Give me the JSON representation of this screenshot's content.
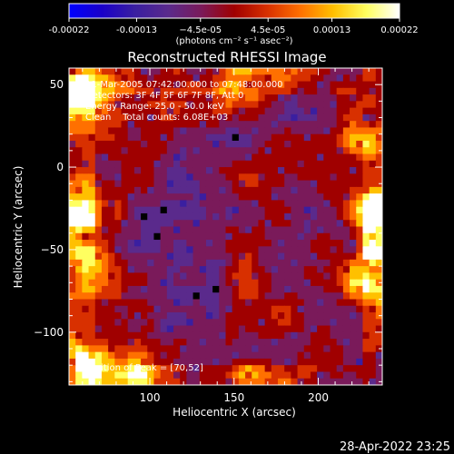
{
  "chart_data": {
    "type": "heatmap",
    "title": "Reconstructed RHESSI Image",
    "xlabel": "Heliocentric X (arcsec)",
    "ylabel": "Heliocentric Y (arcsec)",
    "xlim": [
      52,
      238
    ],
    "ylim": [
      -132,
      60
    ],
    "xticks": [
      100,
      150,
      200
    ],
    "yticks": [
      50,
      0,
      -50,
      -100
    ],
    "colorbar": {
      "min": -0.00022,
      "max": 0.00022,
      "tick_values": [
        -0.00022,
        -0.00013,
        -4.5e-05,
        4.5e-05,
        0.00013,
        0.00022
      ],
      "tick_labels": [
        "-0.00022",
        "-0.00013",
        "−4.5e-05",
        "4.5e-05",
        "0.00013",
        "0.00022"
      ],
      "unit_label": "(photons cm⁻² s⁻¹ asec⁻²)",
      "colors": [
        "#0000ff",
        "#1a00c8",
        "#3a1fa0",
        "#5a2a8c",
        "#7a1a5a",
        "#a00000",
        "#d83000",
        "#ff7000",
        "#ffc000",
        "#ffff60",
        "#ffffff"
      ]
    },
    "annotations": [
      "11-Mar-2005 07:42:00.000 to 07:48:00.000",
      "Detectors: 3F 4F 5F 6F 7F 8F, Att 0",
      "Energy Range: 25.0 - 50.0 keV",
      "Clean    Total counts: 6.08E+03",
      "Position of Peak = [70,52]"
    ],
    "peak_position": [
      70,
      52
    ]
  },
  "timestamp": "28-Apr-2022 23:25"
}
